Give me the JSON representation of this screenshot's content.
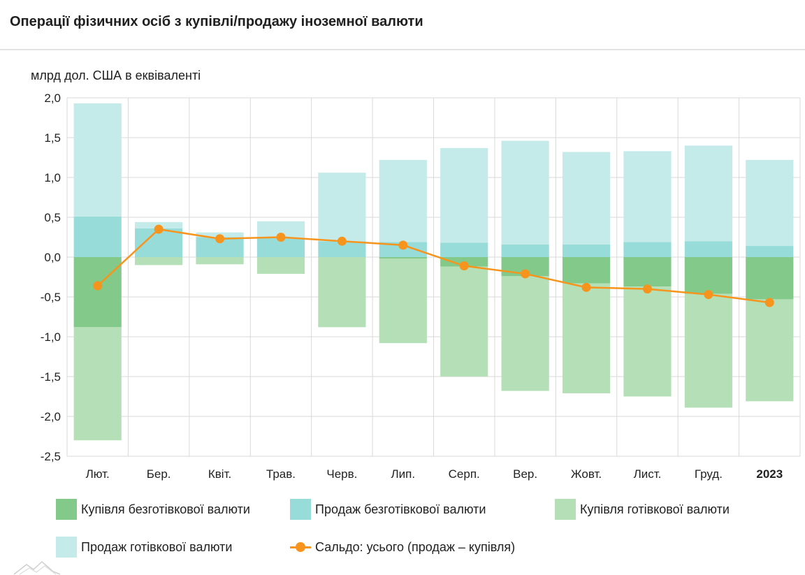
{
  "header": {
    "title": "Операції фізичних осіб з купівлі/продажу іноземної валюти"
  },
  "colors": {
    "buy_noncash": "#82c98a",
    "sell_noncash": "#97dcd9",
    "buy_cash": "#b5e0b7",
    "sell_cash": "#c5eaea",
    "balance": "#f7941d",
    "grid": "#d9d9d9"
  },
  "chart_data": {
    "type": "bar",
    "stacked": true,
    "title": "Операції фізичних осіб з купівлі/продажу іноземної валюти",
    "ylabel": "млрд дол. США в еквіваленті",
    "ylim": [
      -2.5,
      2.0
    ],
    "yticks": [
      2.0,
      1.5,
      1.0,
      0.5,
      0.0,
      -0.5,
      -1.0,
      -1.5,
      -2.0,
      -2.5
    ],
    "ytick_labels": [
      "2,0",
      "1,5",
      "1,0",
      "0,5",
      "0,0",
      "-0,5",
      "-1,0",
      "-1,5",
      "-2,0",
      "-2,5"
    ],
    "categories": [
      "Лют.",
      "Бер.",
      "Квіт.",
      "Трав.",
      "Черв.",
      "Лип.",
      "Серп.",
      "Вер.",
      "Жовт.",
      "Лист.",
      "Груд.",
      "2023"
    ],
    "bold_categories": [
      "2023"
    ],
    "grid": true,
    "legend_position": "bottom",
    "series": [
      {
        "key": "buy_noncash",
        "name": "Купівля безготівкової валюти",
        "values": [
          -0.88,
          0.0,
          0.0,
          0.0,
          0.0,
          -0.02,
          -0.12,
          -0.24,
          -0.33,
          -0.37,
          -0.46,
          -0.53
        ]
      },
      {
        "key": "sell_noncash",
        "name": "Продаж безготівкової валюти",
        "values": [
          0.51,
          0.36,
          0.25,
          0.24,
          0.2,
          0.19,
          0.18,
          0.16,
          0.16,
          0.19,
          0.2,
          0.14
        ]
      },
      {
        "key": "buy_cash",
        "name": "Купівля готівкової валюти",
        "values": [
          -1.42,
          -0.1,
          -0.09,
          -0.21,
          -0.88,
          -1.06,
          -1.38,
          -1.44,
          -1.38,
          -1.38,
          -1.43,
          -1.28
        ]
      },
      {
        "key": "sell_cash",
        "name": "Продаж готівкової валюти",
        "values": [
          1.42,
          0.08,
          0.06,
          0.21,
          0.86,
          1.03,
          1.19,
          1.3,
          1.16,
          1.14,
          1.2,
          1.08
        ]
      },
      {
        "key": "balance",
        "name": "Сальдо: усього (продаж – купівля)",
        "type": "line",
        "values": [
          -0.36,
          0.35,
          0.23,
          0.25,
          0.2,
          0.15,
          -0.11,
          -0.21,
          -0.38,
          -0.4,
          -0.47,
          -0.57
        ]
      }
    ]
  }
}
